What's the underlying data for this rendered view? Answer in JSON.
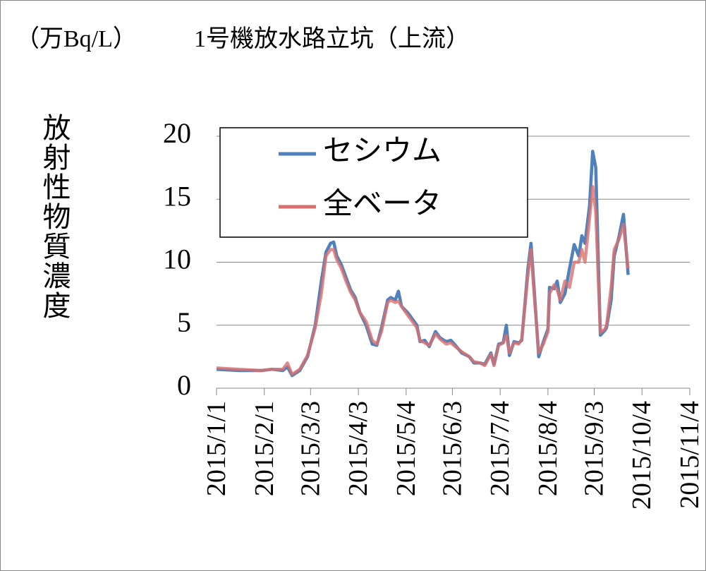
{
  "chart_data": {
    "type": "line",
    "title": "1号機放水路立坑（上流）",
    "y_unit": "（万Bq/L）",
    "ylabel": "放射性物質濃度",
    "x": [
      "2015/1/1",
      "2015/1/16",
      "2015/1/30",
      "2015/2/6",
      "2015/2/13",
      "2015/2/16",
      "2015/2/19",
      "2015/2/24",
      "2015/3/1",
      "2015/3/6",
      "2015/3/10",
      "2015/3/13",
      "2015/3/16",
      "2015/3/18",
      "2015/3/20",
      "2015/3/23",
      "2015/3/26",
      "2015/3/29",
      "2015/4/1",
      "2015/4/4",
      "2015/4/8",
      "2015/4/12",
      "2015/4/15",
      "2015/4/18",
      "2015/4/22",
      "2015/4/24",
      "2015/4/27",
      "2015/4/29",
      "2015/5/1",
      "2015/5/5",
      "2015/5/8",
      "2015/5/11",
      "2015/5/13",
      "2015/5/16",
      "2015/5/19",
      "2015/5/23",
      "2015/5/26",
      "2015/5/30",
      "2015/6/2",
      "2015/6/5",
      "2015/6/9",
      "2015/6/14",
      "2015/6/17",
      "2015/6/21",
      "2015/6/24",
      "2015/6/28",
      "2015/6/30",
      "2015/7/3",
      "2015/7/6",
      "2015/7/8",
      "2015/7/10",
      "2015/7/13",
      "2015/7/16",
      "2015/7/18",
      "2015/7/22",
      "2015/7/24",
      "2015/7/26",
      "2015/7/29",
      "2015/8/1",
      "2015/8/4",
      "2015/8/5",
      "2015/8/8",
      "2015/8/10",
      "2015/8/12",
      "2015/8/15",
      "2015/8/18",
      "2015/8/21",
      "2015/8/24",
      "2015/8/26",
      "2015/8/28",
      "2015/8/31",
      "2015/9/2",
      "2015/9/4",
      "2015/9/7",
      "2015/9/10",
      "2015/9/11",
      "2015/9/14",
      "2015/9/16",
      "2015/9/19",
      "2015/9/22",
      "2015/9/25"
    ],
    "series": [
      {
        "name": "セシウム",
        "color": "#4f81bd",
        "values": [
          1.5,
          1.4,
          1.4,
          1.5,
          1.4,
          1.7,
          1.0,
          1.4,
          2.5,
          5.0,
          8.5,
          10.8,
          11.5,
          11.6,
          10.5,
          9.8,
          8.8,
          7.8,
          7.2,
          6.0,
          5.0,
          3.5,
          3.4,
          4.8,
          7.0,
          7.2,
          7.0,
          7.7,
          6.5,
          6.0,
          5.5,
          5.0,
          3.7,
          3.8,
          3.3,
          4.5,
          4.0,
          3.7,
          3.8,
          3.4,
          2.8,
          2.5,
          2.0,
          2.0,
          1.9,
          2.8,
          1.9,
          3.5,
          3.6,
          5.0,
          2.6,
          3.7,
          3.6,
          3.8,
          9.5,
          11.5,
          8.0,
          2.5,
          3.7,
          4.7,
          8.0,
          7.9,
          8.5,
          6.8,
          7.5,
          9.5,
          11.4,
          10.5,
          12.1,
          11.5,
          14.5,
          18.8,
          17.5,
          4.2,
          4.6,
          4.8,
          7.0,
          10.5,
          12.0,
          13.8,
          9.0
        ]
      },
      {
        "name": "全ベータ",
        "color": "#d9706f",
        "values": [
          1.6,
          1.5,
          1.4,
          1.5,
          1.5,
          2.0,
          1.1,
          1.5,
          2.6,
          4.8,
          7.5,
          10.5,
          11.0,
          11.0,
          10.2,
          9.5,
          8.5,
          7.6,
          7.0,
          6.0,
          5.3,
          3.8,
          3.5,
          4.5,
          6.8,
          7.0,
          6.8,
          6.9,
          6.5,
          5.8,
          5.3,
          4.8,
          3.8,
          3.6,
          3.4,
          4.3,
          3.9,
          3.5,
          3.6,
          3.3,
          2.9,
          2.5,
          2.1,
          2.0,
          1.8,
          2.7,
          1.8,
          3.4,
          3.6,
          4.2,
          2.8,
          3.6,
          3.5,
          3.9,
          9.0,
          11.0,
          7.6,
          2.8,
          3.5,
          4.5,
          7.5,
          8.2,
          7.8,
          7.0,
          8.5,
          8.0,
          10.0,
          10.0,
          11.0,
          10.0,
          13.5,
          16.0,
          14.0,
          4.4,
          4.7,
          5.0,
          8.0,
          11.0,
          11.8,
          13.0,
          9.5
        ]
      }
    ],
    "xlim": [
      "2015/1/1",
      "2015/11/4"
    ],
    "xticks": [
      "2015/1/1",
      "2015/2/1",
      "2015/3/3",
      "2015/4/3",
      "2015/5/4",
      "2015/6/3",
      "2015/7/4",
      "2015/8/4",
      "2015/9/3",
      "2015/10/4",
      "2015/11/4"
    ],
    "ylim": [
      0,
      20
    ],
    "yticks": [
      0,
      5,
      10,
      15,
      20
    ],
    "grid": true
  }
}
